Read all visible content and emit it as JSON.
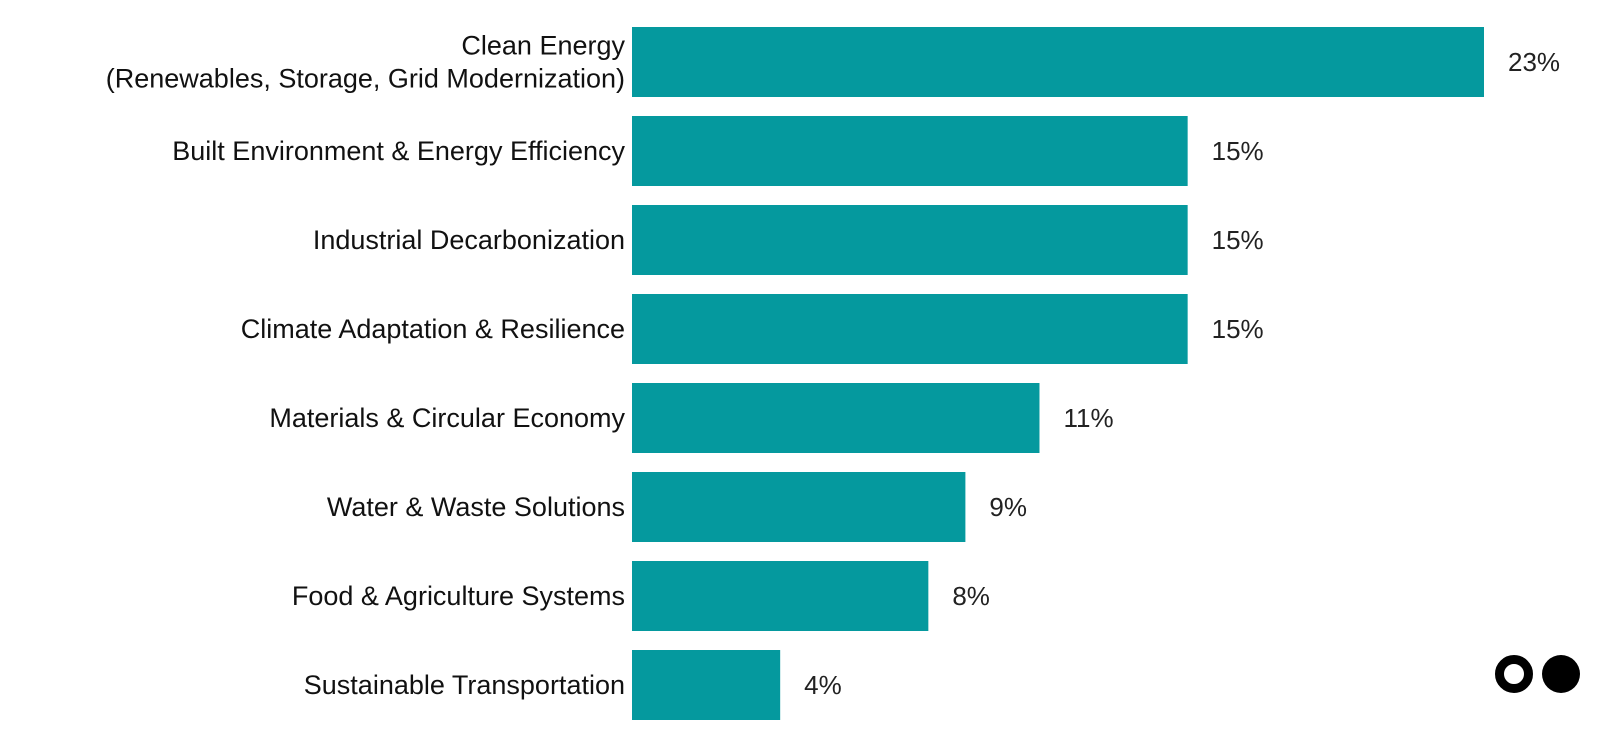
{
  "chart_data": {
    "type": "bar",
    "orientation": "horizontal",
    "categories": [
      [
        "Clean Energy",
        "(Renewables, Storage, Grid Modernization)"
      ],
      [
        "Built Environment & Energy Efficiency"
      ],
      [
        "Industrial Decarbonization"
      ],
      [
        "Climate Adaptation & Resilience"
      ],
      [
        "Materials & Circular Economy"
      ],
      [
        "Water & Waste Solutions"
      ],
      [
        "Food & Agriculture Systems"
      ],
      [
        "Sustainable Transportation"
      ]
    ],
    "values": [
      23,
      15,
      15,
      15,
      11,
      9,
      8,
      4
    ],
    "value_labels": [
      "23%",
      "15%",
      "15%",
      "15%",
      "11%",
      "9%",
      "8%",
      "4%"
    ],
    "title": "",
    "xlabel": "",
    "ylabel": "",
    "xlim": [
      0,
      23
    ],
    "grid": false,
    "bar_color": "#05999E"
  },
  "logo": {
    "icon": "two-dots-logo-icon"
  }
}
